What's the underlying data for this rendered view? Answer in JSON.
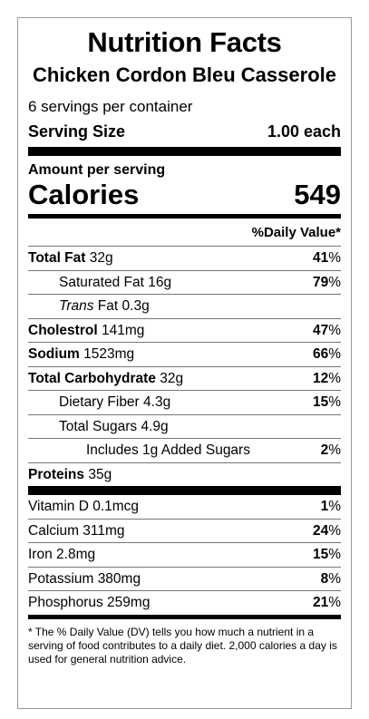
{
  "header": {
    "title": "Nutrition Facts",
    "product": "Chicken Cordon Bleu Casserole",
    "servings_per_container": "6 servings per container",
    "serving_size_label": "Serving Size",
    "serving_size_value": "1.00 each"
  },
  "calories": {
    "amount_label": "Amount per serving",
    "label": "Calories",
    "value": "549"
  },
  "dv_header": "%Daily Value*",
  "nutrients": [
    {
      "name": "Total Fat",
      "amount": "32g",
      "dv": "41"
    },
    {
      "name": "Saturated Fat",
      "amount": "16g",
      "dv": "79"
    },
    {
      "name": "Trans",
      "name_suffix": "Fat",
      "amount": "0.3g",
      "dv": ""
    },
    {
      "name": "Cholestrol",
      "amount": "141mg",
      "dv": "47"
    },
    {
      "name": "Sodium",
      "amount": "1523mg",
      "dv": "66"
    },
    {
      "name": "Total Carbohydrate",
      "amount": "32g",
      "dv": "12"
    },
    {
      "name": "Dietary Fiber",
      "amount": "4.3g",
      "dv": "15"
    },
    {
      "name": "Total Sugars",
      "amount": "4.9g",
      "dv": ""
    },
    {
      "name": "Includes 1g Added Sugars",
      "amount": "",
      "dv": "2"
    },
    {
      "name": "Proteins",
      "amount": "35g",
      "dv": ""
    }
  ],
  "vitamins": [
    {
      "name": "Vitamin D",
      "amount": "0.1mcg",
      "dv": "1"
    },
    {
      "name": "Calcium",
      "amount": "311mg",
      "dv": "24"
    },
    {
      "name": "Iron",
      "amount": "2.8mg",
      "dv": "15"
    },
    {
      "name": "Potassium",
      "amount": "380mg",
      "dv": "8"
    },
    {
      "name": "Phosphorus",
      "amount": "259mg",
      "dv": "21"
    }
  ],
  "percent_sign": "%",
  "footnote": "* The % Daily Value (DV) tells you how much a nutrient in a serving of food contributes to a daily diet. 2,000 calories a day is used for general nutrition advice."
}
